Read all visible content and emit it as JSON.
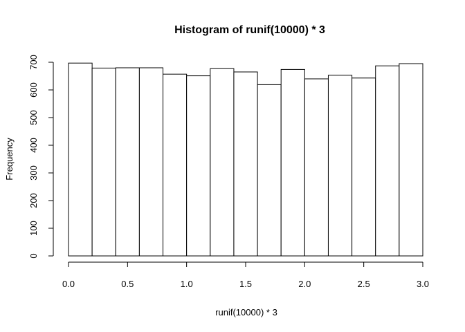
{
  "chart_data": {
    "type": "bar",
    "title": "Histogram of runif(10000) * 3",
    "xlabel": "runif(10000) * 3",
    "ylabel": "Frequency",
    "bin_width": 0.2,
    "bin_starts": [
      0.0,
      0.2,
      0.4,
      0.6,
      0.8,
      1.0,
      1.2,
      1.4,
      1.6,
      1.8,
      2.0,
      2.2,
      2.4,
      2.6,
      2.8
    ],
    "values": [
      697,
      679,
      680,
      680,
      657,
      651,
      677,
      665,
      619,
      674,
      640,
      653,
      643,
      687,
      695
    ],
    "xlim": [
      0,
      3
    ],
    "ylim": [
      0,
      700
    ],
    "x_ticks": [
      0.0,
      0.5,
      1.0,
      1.5,
      2.0,
      2.5,
      3.0
    ],
    "x_tick_labels": [
      "0.0",
      "0.5",
      "1.0",
      "1.5",
      "2.0",
      "2.5",
      "3.0"
    ],
    "y_ticks": [
      0,
      100,
      200,
      300,
      400,
      500,
      600,
      700
    ],
    "y_tick_labels": [
      "0",
      "100",
      "200",
      "300",
      "400",
      "500",
      "600",
      "700"
    ],
    "grid": false,
    "bar_fill": "#ffffff",
    "bar_stroke": "#000000"
  }
}
